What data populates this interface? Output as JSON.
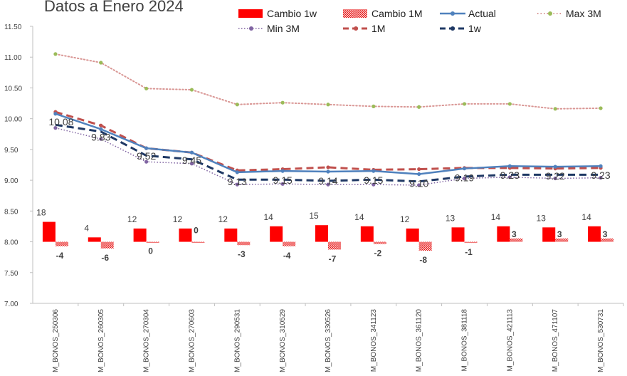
{
  "chart_data": {
    "type": "bar",
    "title": "Datos a Enero 2024",
    "categories": [
      "M_BONOS_250306",
      "M_BONOS_260305",
      "M_BONOS_270304",
      "M_BONOS_270603",
      "M_BONOS_290531",
      "M_BONOS_310529",
      "M_BONOS_330526",
      "M_BONOS_341123",
      "M_BONOS_361120",
      "M_BONOS_381118",
      "M_BONOS_421113",
      "M_BONOS_471107",
      "M_BONOS_530731"
    ],
    "y_axis": {
      "min": 7.0,
      "max": 11.5,
      "step": 0.5,
      "tick_labels": [
        "7.00",
        "7.50",
        "8.00",
        "8.50",
        "9.00",
        "9.50",
        "10.00",
        "10.50",
        "11.00",
        "11.50"
      ]
    },
    "bar_baseline": 8.0,
    "bar_scale_per_unit": 0.018,
    "series": [
      {
        "name": "Cambio 1w",
        "kind": "bar",
        "color": "#ff0000",
        "values": [
          18,
          4,
          12,
          12,
          12,
          14,
          15,
          14,
          12,
          13,
          14,
          13,
          14
        ],
        "labels": [
          "18",
          "4",
          "12",
          "12",
          "12",
          "14",
          "15",
          "14",
          "12",
          "13",
          "14",
          "13",
          "14"
        ]
      },
      {
        "name": "Cambio 1M",
        "kind": "bar",
        "color": "#ff0000",
        "pattern": "dotted",
        "values": [
          -4,
          -6,
          0,
          0,
          -3,
          -4,
          -7,
          -2,
          -8,
          -1,
          3,
          3,
          3
        ],
        "labels": [
          "-4",
          "-6",
          "0",
          "0",
          "-3",
          "-4",
          "-7",
          "-2",
          "-8",
          "-1",
          "3",
          "3",
          "3"
        ]
      },
      {
        "name": "Actual",
        "kind": "line",
        "color": "#4f81bd",
        "values": [
          10.08,
          9.83,
          9.52,
          9.45,
          9.13,
          9.15,
          9.14,
          9.15,
          9.1,
          9.19,
          9.23,
          9.22,
          9.23
        ],
        "labels": [
          "10.08",
          "9.83",
          "9.52",
          "9.45",
          "9.13",
          "9.15",
          "9.14",
          "9.15",
          "9.10",
          "9.19",
          "9.23",
          "9.22",
          "9.23"
        ]
      },
      {
        "name": "Max 3M",
        "kind": "line",
        "color": "#9bbb59",
        "line_color": "#d99694",
        "dash": "dotted",
        "values": [
          11.05,
          10.91,
          10.49,
          10.47,
          10.23,
          10.26,
          10.23,
          10.2,
          10.19,
          10.24,
          10.24,
          10.16,
          10.17
        ]
      },
      {
        "name": "Min 3M",
        "kind": "line",
        "color": "#8064a2",
        "dash": "dotted",
        "values": [
          9.85,
          9.67,
          9.3,
          9.27,
          8.93,
          8.94,
          8.93,
          8.93,
          8.92,
          9.03,
          9.05,
          9.03,
          9.04
        ]
      },
      {
        "name": "1M",
        "kind": "line",
        "color": "#c0504d",
        "dash": "dashed",
        "values": [
          10.11,
          9.89,
          9.52,
          9.45,
          9.16,
          9.18,
          9.21,
          9.17,
          9.18,
          9.2,
          9.2,
          9.19,
          9.2
        ]
      },
      {
        "name": "1w",
        "kind": "line",
        "color": "#1f3864",
        "dash": "dashed",
        "values": [
          9.9,
          9.79,
          9.4,
          9.34,
          9.01,
          9.01,
          8.99,
          9.01,
          8.98,
          9.06,
          9.09,
          9.09,
          9.09
        ]
      }
    ],
    "legend": {
      "position": "top"
    },
    "grid": false
  }
}
